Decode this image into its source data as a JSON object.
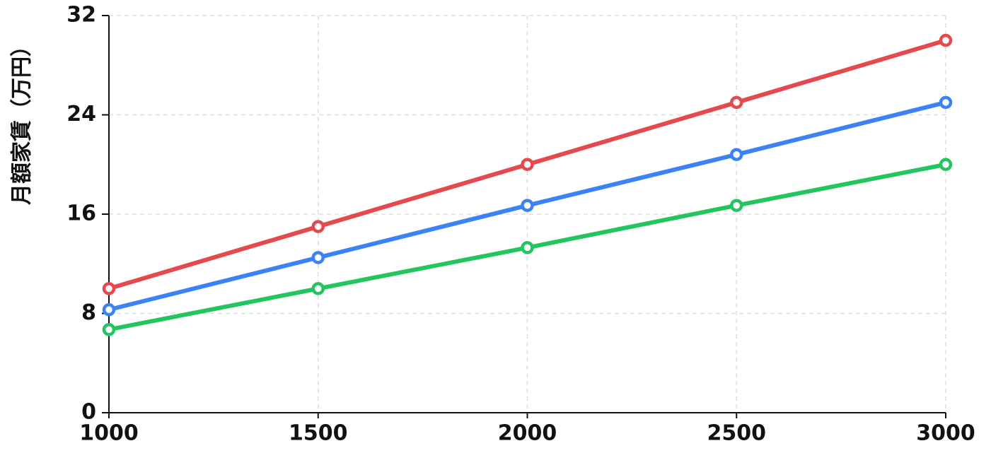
{
  "chart_data": {
    "type": "line",
    "y_label": "月額家賃（万円）",
    "x": [
      1000,
      1500,
      2000,
      2500,
      3000
    ],
    "xlim": [
      1000,
      3000
    ],
    "xticks": [
      1000,
      1500,
      2000,
      2500,
      3000
    ],
    "ylim": [
      0,
      32
    ],
    "yticks": [
      0,
      8,
      16,
      24,
      32
    ],
    "grid": true,
    "series": [
      {
        "color": "#e5484d",
        "values": [
          10,
          15,
          20,
          25,
          30
        ]
      },
      {
        "color": "#3b82f6",
        "values": [
          8.3,
          12.5,
          16.7,
          20.8,
          25
        ]
      },
      {
        "color": "#22c55e",
        "values": [
          6.7,
          10,
          13.3,
          16.7,
          20
        ]
      }
    ]
  }
}
